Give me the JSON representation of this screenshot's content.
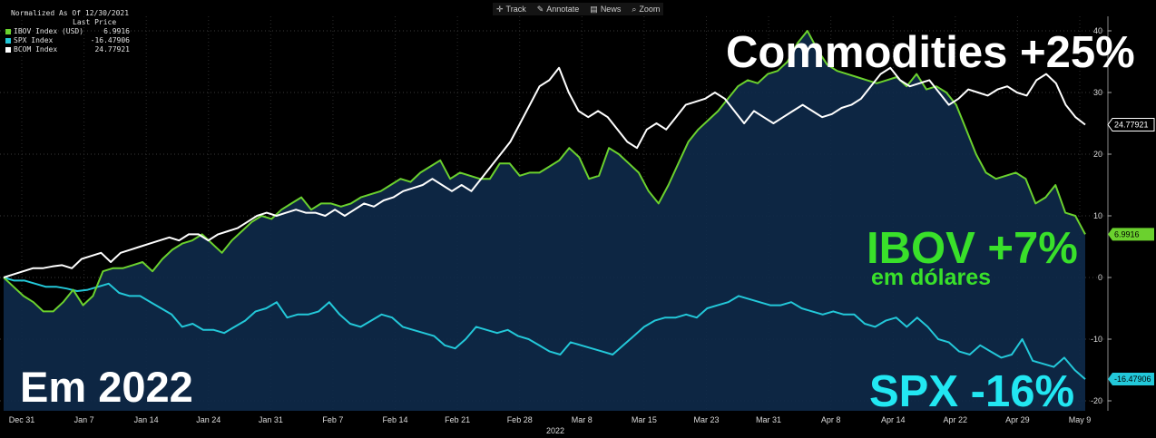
{
  "toolbar": {
    "track": "Track",
    "annotate": "Annotate",
    "news": "News",
    "zoom": "Zoom"
  },
  "legend": {
    "header": "Normalized As Of 12/30/2021",
    "subheader": "Last Price",
    "items": [
      {
        "label": "IBOV Index (USD)",
        "value": "6.9916",
        "color": "#6bd12e"
      },
      {
        "label": "SPX Index",
        "value": "-16.47906",
        "color": "#23c8d9"
      },
      {
        "label": "BCOM Index",
        "value": "24.77921",
        "color": "#ffffff"
      }
    ]
  },
  "annotations": {
    "commodities": "Commodities +25%",
    "ibov": "IBOV +7%",
    "ibov_sub": "em dólares",
    "spx": "SPX -16%",
    "year": "Em 2022"
  },
  "chart_data": {
    "type": "line",
    "x_tick_labels": [
      "Dec 31",
      "Jan 7",
      "Jan 14",
      "Jan 24",
      "Jan 31",
      "Feb 7",
      "Feb 14",
      "Feb 21",
      "Feb 28",
      "Mar 8",
      "Mar 15",
      "Mar 23",
      "Mar 31",
      "Apr 8",
      "Apr 14",
      "Apr 22",
      "Apr 29",
      "May 9"
    ],
    "x_sub_label": "2022",
    "y_ticks": [
      40,
      30,
      20,
      10,
      0,
      -10,
      -20
    ],
    "ylim": [
      -21,
      44
    ],
    "series": [
      {
        "name": "IBOV Index (USD)",
        "color": "#6bd12e",
        "last_label": "6.9916",
        "values": [
          0,
          -1.5,
          -3,
          -4,
          -5.5,
          -5.5,
          -4,
          -2,
          -4.5,
          -3,
          1,
          1.5,
          1.5,
          2,
          2.5,
          1,
          3,
          4.5,
          5.5,
          6,
          7,
          5.5,
          4,
          6,
          7.5,
          9,
          10,
          9.5,
          11,
          12,
          13,
          11,
          12,
          12,
          11.5,
          12,
          13,
          13.5,
          14,
          15,
          16,
          15.5,
          17,
          18,
          19,
          16,
          17,
          16.5,
          16,
          16,
          18.5,
          18.5,
          16.5,
          17,
          17,
          18,
          19,
          21,
          19.5,
          16,
          16.5,
          21,
          20,
          18.5,
          17,
          14,
          12,
          15,
          18.5,
          22,
          24,
          25.5,
          27,
          29,
          31,
          32,
          31.5,
          33,
          33.5,
          35,
          38,
          40,
          37,
          34.5,
          33.5,
          33,
          32.5,
          32,
          31.5,
          32,
          32.5,
          31,
          33,
          30.5,
          31,
          30,
          28,
          24,
          20,
          17,
          16,
          16.5,
          17,
          16,
          12,
          13,
          15,
          10.5,
          10,
          7
        ]
      },
      {
        "name": "SPX Index",
        "color": "#23c8d9",
        "last_label": "-16.47906",
        "values": [
          0,
          -0.5,
          -0.5,
          -1,
          -1.5,
          -1.5,
          -1.8,
          -2.2,
          -2,
          -1.5,
          -1,
          -2.5,
          -3,
          -3,
          -4,
          -5,
          -6,
          -8,
          -7.5,
          -8.5,
          -8.5,
          -9,
          -8,
          -7,
          -5.5,
          -5,
          -4,
          -6.5,
          -6,
          -6,
          -5.5,
          -4,
          -6,
          -7.5,
          -8,
          -7,
          -6,
          -6.5,
          -8,
          -8.5,
          -9,
          -9.5,
          -11,
          -11.5,
          -10,
          -8,
          -8.5,
          -9,
          -8.5,
          -9.5,
          -10,
          -11,
          -12,
          -12.5,
          -10.5,
          -11,
          -11.5,
          -12,
          -12.5,
          -11,
          -9.5,
          -8,
          -7,
          -6.5,
          -6.5,
          -6,
          -6.5,
          -5,
          -4.5,
          -4,
          -3,
          -3.5,
          -4,
          -4.5,
          -4.5,
          -4,
          -5,
          -5.5,
          -6,
          -5.5,
          -6,
          -6,
          -7.5,
          -8,
          -7,
          -6.5,
          -8,
          -6.5,
          -8,
          -10,
          -10.5,
          -12,
          -12.5,
          -11,
          -12,
          -13,
          -12.5,
          -10,
          -13.5,
          -14,
          -14.5,
          -13,
          -15,
          -16.47906
        ]
      },
      {
        "name": "BCOM Index",
        "color": "#ffffff",
        "last_label": "24.77921",
        "values": [
          0,
          0.5,
          1,
          1.5,
          1.5,
          1.8,
          2,
          1.5,
          3,
          3.5,
          4,
          2.5,
          4,
          4.5,
          5,
          5.5,
          6,
          6.5,
          6,
          7,
          7,
          6,
          7,
          7.5,
          8,
          9,
          10,
          10.5,
          10,
          10.5,
          11,
          10.5,
          10.5,
          10,
          11,
          10,
          11,
          12,
          11.5,
          12.5,
          13,
          14,
          14.5,
          15,
          16,
          15,
          14,
          15,
          14,
          16,
          18,
          20,
          22,
          25,
          28,
          31,
          32,
          34,
          30,
          27,
          26,
          27,
          26,
          24,
          22,
          21,
          24,
          25,
          24,
          26,
          28,
          28.5,
          29,
          30,
          29,
          27,
          25,
          27,
          26,
          25,
          26,
          27,
          28,
          27,
          26,
          26.5,
          27.5,
          28,
          29,
          31,
          33,
          34,
          32,
          31,
          31.5,
          32,
          30,
          28,
          29,
          30.5,
          30,
          29.5,
          30.5,
          31,
          30,
          29.5,
          32,
          33,
          31.5,
          28,
          26,
          24.77921
        ]
      }
    ]
  }
}
